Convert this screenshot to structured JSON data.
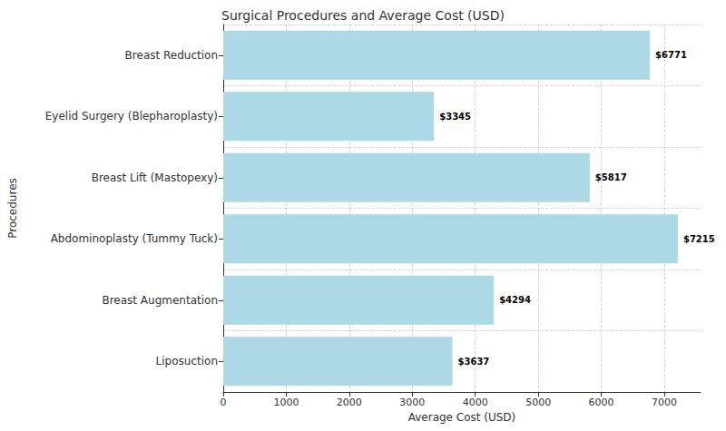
{
  "chart_data": {
    "type": "bar",
    "orientation": "horizontal",
    "title": "Surgical Procedures and Average Cost (USD)",
    "x_label": "Average Cost (USD)",
    "y_label": "Procedures",
    "categories": [
      "Liposuction",
      "Breast Augmentation",
      "Abdominoplasty (Tummy Tuck)",
      "Breast Lift (Mastopexy)",
      "Eyelid Surgery (Blepharoplasty)",
      "Breast Reduction"
    ],
    "values": [
      3637,
      4294,
      7215,
      5817,
      3345,
      6771
    ],
    "value_labels": [
      "$3637",
      "$4294",
      "$7215",
      "$5817",
      "$3345",
      "$6771"
    ],
    "color": "#add8e6",
    "xlim": [
      0,
      7576
    ],
    "xticks": [
      0,
      1000,
      2000,
      3000,
      4000,
      5000,
      6000,
      7000
    ],
    "grid": true,
    "data_labels": true
  }
}
